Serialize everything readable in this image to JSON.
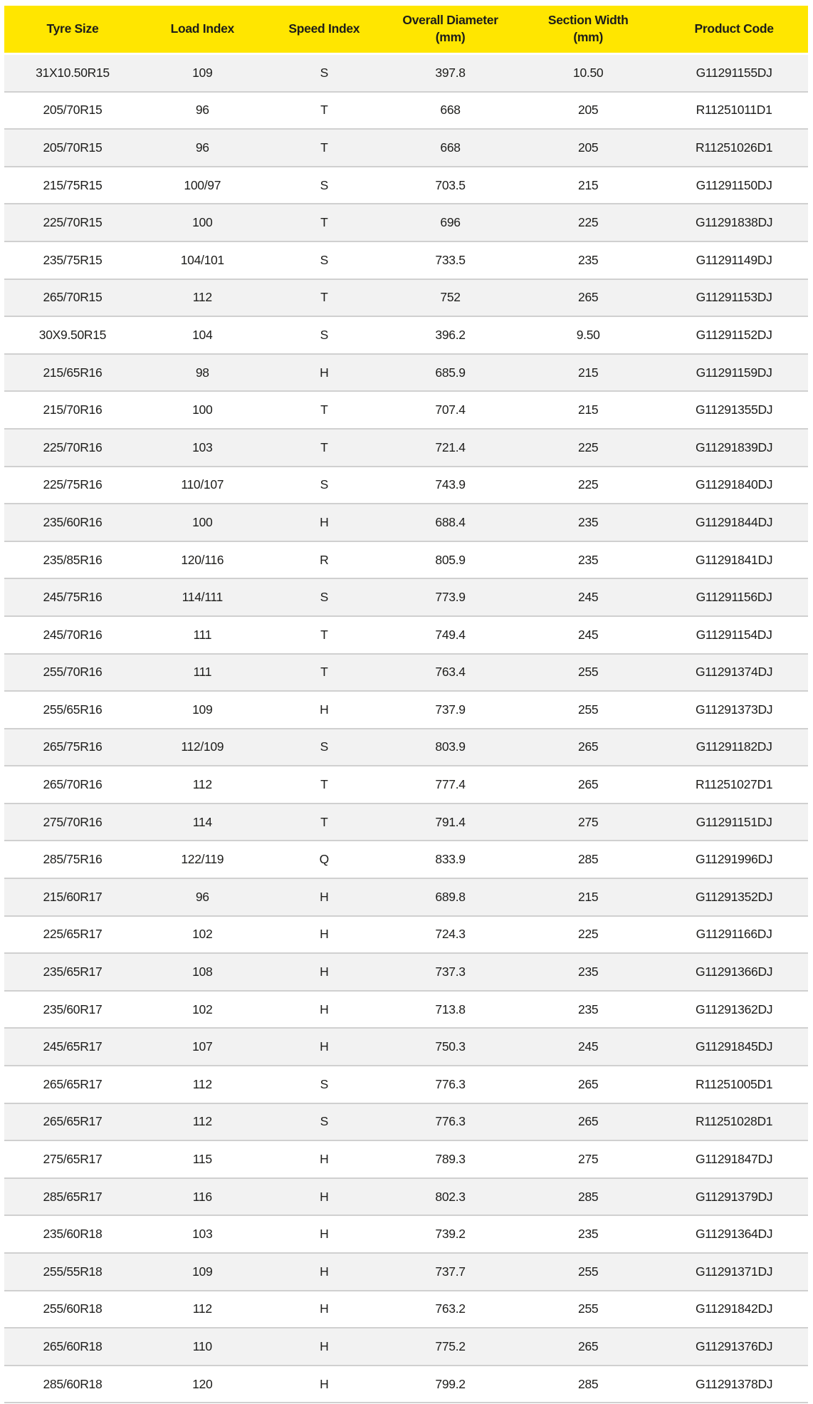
{
  "colors": {
    "header_bg": "#FFE600",
    "header_text": "#1d1d1b",
    "row_alt_bg": "#f2f2f2",
    "row_bg": "#ffffff",
    "divider": "#d0d0d0",
    "cell_text": "#1d1d1b"
  },
  "chart_data": {
    "type": "table",
    "columns": [
      {
        "label": "Tyre Size",
        "sub": ""
      },
      {
        "label": "Load Index",
        "sub": ""
      },
      {
        "label": "Speed Index",
        "sub": ""
      },
      {
        "label": "Overall Diameter",
        "sub": "(mm)"
      },
      {
        "label": "Section Width",
        "sub": "(mm)"
      },
      {
        "label": "Product Code",
        "sub": ""
      }
    ],
    "rows": [
      [
        "31X10.50R15",
        "109",
        "S",
        "397.8",
        "10.50",
        "G11291155DJ"
      ],
      [
        "205/70R15",
        "96",
        "T",
        "668",
        "205",
        "R11251011D1"
      ],
      [
        "205/70R15",
        "96",
        "T",
        "668",
        "205",
        "R11251026D1"
      ],
      [
        "215/75R15",
        "100/97",
        "S",
        "703.5",
        "215",
        "G11291150DJ"
      ],
      [
        "225/70R15",
        "100",
        "T",
        "696",
        "225",
        "G11291838DJ"
      ],
      [
        "235/75R15",
        "104/101",
        "S",
        "733.5",
        "235",
        "G11291149DJ"
      ],
      [
        "265/70R15",
        "112",
        "T",
        "752",
        "265",
        "G11291153DJ"
      ],
      [
        "30X9.50R15",
        "104",
        "S",
        "396.2",
        "9.50",
        "G11291152DJ"
      ],
      [
        "215/65R16",
        "98",
        "H",
        "685.9",
        "215",
        "G11291159DJ"
      ],
      [
        "215/70R16",
        "100",
        "T",
        "707.4",
        "215",
        "G11291355DJ"
      ],
      [
        "225/70R16",
        "103",
        "T",
        "721.4",
        "225",
        "G11291839DJ"
      ],
      [
        "225/75R16",
        "110/107",
        "S",
        "743.9",
        "225",
        "G11291840DJ"
      ],
      [
        "235/60R16",
        "100",
        "H",
        "688.4",
        "235",
        "G11291844DJ"
      ],
      [
        "235/85R16",
        "120/116",
        "R",
        "805.9",
        "235",
        "G11291841DJ"
      ],
      [
        "245/75R16",
        "114/111",
        "S",
        "773.9",
        "245",
        "G11291156DJ"
      ],
      [
        "245/70R16",
        "111",
        "T",
        "749.4",
        "245",
        "G11291154DJ"
      ],
      [
        "255/70R16",
        "111",
        "T",
        "763.4",
        "255",
        "G11291374DJ"
      ],
      [
        "255/65R16",
        "109",
        "H",
        "737.9",
        "255",
        "G11291373DJ"
      ],
      [
        "265/75R16",
        "112/109",
        "S",
        "803.9",
        "265",
        "G11291182DJ"
      ],
      [
        "265/70R16",
        "112",
        "T",
        "777.4",
        "265",
        "R11251027D1"
      ],
      [
        "275/70R16",
        "114",
        "T",
        "791.4",
        "275",
        "G11291151DJ"
      ],
      [
        "285/75R16",
        "122/119",
        "Q",
        "833.9",
        "285",
        "G11291996DJ"
      ],
      [
        "215/60R17",
        "96",
        "H",
        "689.8",
        "215",
        "G11291352DJ"
      ],
      [
        "225/65R17",
        "102",
        "H",
        "724.3",
        "225",
        "G11291166DJ"
      ],
      [
        "235/65R17",
        "108",
        "H",
        "737.3",
        "235",
        "G11291366DJ"
      ],
      [
        "235/60R17",
        "102",
        "H",
        "713.8",
        "235",
        "G11291362DJ"
      ],
      [
        "245/65R17",
        "107",
        "H",
        "750.3",
        "245",
        "G11291845DJ"
      ],
      [
        "265/65R17",
        "112",
        "S",
        "776.3",
        "265",
        "R11251005D1"
      ],
      [
        "265/65R17",
        "112",
        "S",
        "776.3",
        "265",
        "R11251028D1"
      ],
      [
        "275/65R17",
        "115",
        "H",
        "789.3",
        "275",
        "G11291847DJ"
      ],
      [
        "285/65R17",
        "116",
        "H",
        "802.3",
        "285",
        "G11291379DJ"
      ],
      [
        "235/60R18",
        "103",
        "H",
        "739.2",
        "235",
        "G11291364DJ"
      ],
      [
        "255/55R18",
        "109",
        "H",
        "737.7",
        "255",
        "G11291371DJ"
      ],
      [
        "255/60R18",
        "112",
        "H",
        "763.2",
        "255",
        "G11291842DJ"
      ],
      [
        "265/60R18",
        "110",
        "H",
        "775.2",
        "265",
        "G11291376DJ"
      ],
      [
        "285/60R18",
        "120",
        "H",
        "799.2",
        "285",
        "G11291378DJ"
      ]
    ]
  }
}
